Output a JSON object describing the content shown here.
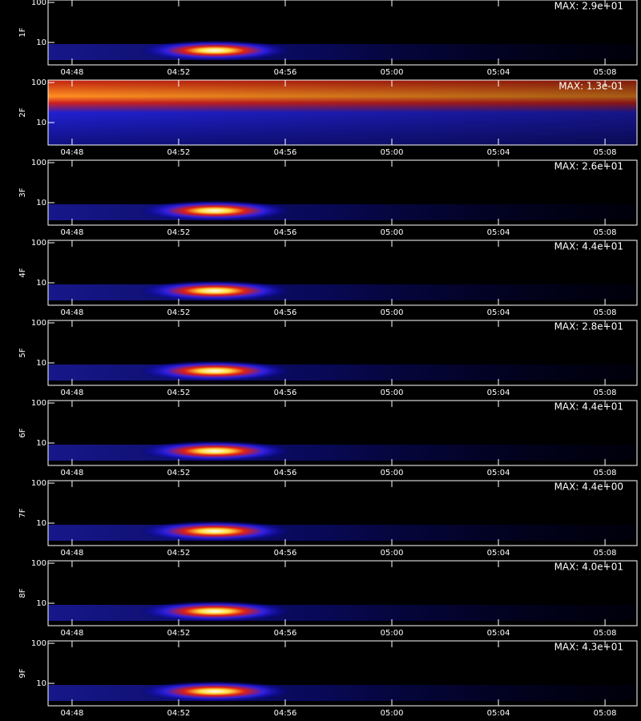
{
  "chart_data": [
    {
      "type": "heatmap",
      "ylabel": "1F",
      "annotation": "MAX: 2.9e+01",
      "log_y": true,
      "xlim": [
        287.1,
        309.2
      ],
      "ylim": [
        2.75,
        115
      ],
      "yticks": [
        10,
        100
      ],
      "xticks": [
        {
          "value": 288,
          "label": "04:48"
        },
        {
          "value": 292,
          "label": "04:52"
        },
        {
          "value": 296,
          "label": "04:56"
        },
        {
          "value": 300,
          "label": "05:00"
        },
        {
          "value": 304,
          "label": "05:04"
        },
        {
          "value": 308,
          "label": "05:08"
        }
      ]
    },
    {
      "type": "heatmap",
      "ylabel": "2F",
      "annotation": "MAX: 1.3e-01",
      "log_y": true,
      "xlim": [
        287.1,
        309.2
      ],
      "ylim": [
        2.75,
        115
      ],
      "yticks": [
        10,
        100
      ],
      "xticks": [
        {
          "value": 288,
          "label": "04:48"
        },
        {
          "value": 292,
          "label": "04:52"
        },
        {
          "value": 296,
          "label": "04:56"
        },
        {
          "value": 300,
          "label": "05:00"
        },
        {
          "value": 304,
          "label": "05:04"
        },
        {
          "value": 308,
          "label": "05:08"
        }
      ]
    },
    {
      "type": "heatmap",
      "ylabel": "3F",
      "annotation": "MAX: 2.6e+01",
      "log_y": true,
      "xlim": [
        287.1,
        309.2
      ],
      "ylim": [
        2.75,
        115
      ],
      "yticks": [
        10,
        100
      ],
      "xticks": [
        {
          "value": 288,
          "label": "04:48"
        },
        {
          "value": 292,
          "label": "04:52"
        },
        {
          "value": 296,
          "label": "04:56"
        },
        {
          "value": 300,
          "label": "05:00"
        },
        {
          "value": 304,
          "label": "05:04"
        },
        {
          "value": 308,
          "label": "05:08"
        }
      ]
    },
    {
      "type": "heatmap",
      "ylabel": "4F",
      "annotation": "MAX: 4.4e+01",
      "log_y": true,
      "xlim": [
        287.1,
        309.2
      ],
      "ylim": [
        2.75,
        115
      ],
      "yticks": [
        10,
        100
      ],
      "xticks": [
        {
          "value": 288,
          "label": "04:48"
        },
        {
          "value": 292,
          "label": "04:52"
        },
        {
          "value": 296,
          "label": "04:56"
        },
        {
          "value": 300,
          "label": "05:00"
        },
        {
          "value": 304,
          "label": "05:04"
        },
        {
          "value": 308,
          "label": "05:08"
        }
      ]
    },
    {
      "type": "heatmap",
      "ylabel": "5F",
      "annotation": "MAX: 2.8e+01",
      "log_y": true,
      "xlim": [
        287.1,
        309.2
      ],
      "ylim": [
        2.75,
        115
      ],
      "yticks": [
        10,
        100
      ],
      "xticks": [
        {
          "value": 288,
          "label": "04:48"
        },
        {
          "value": 292,
          "label": "04:52"
        },
        {
          "value": 296,
          "label": "04:56"
        },
        {
          "value": 300,
          "label": "05:00"
        },
        {
          "value": 304,
          "label": "05:04"
        },
        {
          "value": 308,
          "label": "05:08"
        }
      ]
    },
    {
      "type": "heatmap",
      "ylabel": "6F",
      "annotation": "MAX: 4.4e+01",
      "log_y": true,
      "xlim": [
        287.1,
        309.2
      ],
      "ylim": [
        2.75,
        115
      ],
      "yticks": [
        10,
        100
      ],
      "xticks": [
        {
          "value": 288,
          "label": "04:48"
        },
        {
          "value": 292,
          "label": "04:52"
        },
        {
          "value": 296,
          "label": "04:56"
        },
        {
          "value": 300,
          "label": "05:00"
        },
        {
          "value": 304,
          "label": "05:04"
        },
        {
          "value": 308,
          "label": "05:08"
        }
      ]
    },
    {
      "type": "heatmap",
      "ylabel": "7F",
      "annotation": "MAX: 4.4e+00",
      "log_y": true,
      "xlim": [
        287.1,
        309.2
      ],
      "ylim": [
        2.75,
        115
      ],
      "yticks": [
        10,
        100
      ],
      "xticks": [
        {
          "value": 288,
          "label": "04:48"
        },
        {
          "value": 292,
          "label": "04:52"
        },
        {
          "value": 296,
          "label": "04:56"
        },
        {
          "value": 300,
          "label": "05:00"
        },
        {
          "value": 304,
          "label": "05:04"
        },
        {
          "value": 308,
          "label": "05:08"
        }
      ]
    },
    {
      "type": "heatmap",
      "ylabel": "8F",
      "annotation": "MAX: 4.0e+01",
      "log_y": true,
      "xlim": [
        287.1,
        309.2
      ],
      "ylim": [
        2.75,
        115
      ],
      "yticks": [
        10,
        100
      ],
      "xticks": [
        {
          "value": 288,
          "label": "04:48"
        },
        {
          "value": 292,
          "label": "04:52"
        },
        {
          "value": 296,
          "label": "04:56"
        },
        {
          "value": 300,
          "label": "05:00"
        },
        {
          "value": 304,
          "label": "05:04"
        },
        {
          "value": 308,
          "label": "05:08"
        }
      ]
    },
    {
      "type": "heatmap",
      "ylabel": "9F",
      "annotation": "MAX: 4.3e+01",
      "log_y": true,
      "xlim": [
        287.1,
        309.2
      ],
      "ylim": [
        2.75,
        115
      ],
      "yticks": [
        10,
        100
      ],
      "xticks": [
        {
          "value": 288,
          "label": "04:48"
        },
        {
          "value": 292,
          "label": "04:52"
        },
        {
          "value": 296,
          "label": "04:56"
        },
        {
          "value": 300,
          "label": "05:00"
        },
        {
          "value": 304,
          "label": "05:04"
        },
        {
          "value": 308,
          "label": "05:08"
        }
      ]
    }
  ]
}
